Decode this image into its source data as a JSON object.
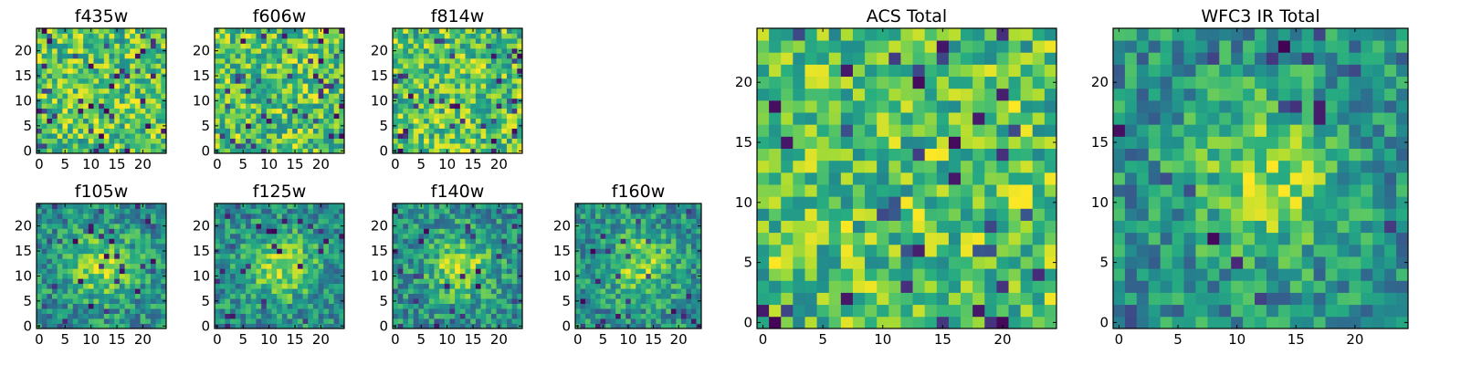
{
  "chart_data": [
    {
      "type": "heatmap",
      "id": "f435w",
      "title": "f435w",
      "colormap": "viridis",
      "grid_size": 25,
      "xlim": [
        0,
        24
      ],
      "ylim": [
        0,
        24
      ],
      "xticks": [
        "0",
        "5",
        "10",
        "15",
        "20"
      ],
      "yticks": [
        "0",
        "5",
        "10",
        "15",
        "20"
      ],
      "structure": "noise",
      "seed": 11
    },
    {
      "type": "heatmap",
      "id": "f606w",
      "title": "f606w",
      "colormap": "viridis",
      "grid_size": 25,
      "xlim": [
        0,
        24
      ],
      "ylim": [
        0,
        24
      ],
      "xticks": [
        "0",
        "5",
        "10",
        "15",
        "20"
      ],
      "yticks": [
        "0",
        "5",
        "10",
        "15",
        "20"
      ],
      "structure": "noise",
      "seed": 23
    },
    {
      "type": "heatmap",
      "id": "f814w",
      "title": "f814w",
      "colormap": "viridis",
      "grid_size": 25,
      "xlim": [
        0,
        24
      ],
      "ylim": [
        0,
        24
      ],
      "xticks": [
        "0",
        "5",
        "10",
        "15",
        "20"
      ],
      "yticks": [
        "0",
        "5",
        "10",
        "15",
        "20"
      ],
      "structure": "noise",
      "seed": 37
    },
    {
      "type": "heatmap",
      "id": "f105w",
      "title": "f105w",
      "colormap": "viridis",
      "grid_size": 25,
      "xlim": [
        0,
        24
      ],
      "ylim": [
        0,
        24
      ],
      "xticks": [
        "0",
        "5",
        "10",
        "15",
        "20"
      ],
      "yticks": [
        "0",
        "5",
        "10",
        "15",
        "20"
      ],
      "structure": "source",
      "seed": 41
    },
    {
      "type": "heatmap",
      "id": "f125w",
      "title": "f125w",
      "colormap": "viridis",
      "grid_size": 25,
      "xlim": [
        0,
        24
      ],
      "ylim": [
        0,
        24
      ],
      "xticks": [
        "0",
        "5",
        "10",
        "15",
        "20"
      ],
      "yticks": [
        "0",
        "5",
        "10",
        "15",
        "20"
      ],
      "structure": "source",
      "seed": 53
    },
    {
      "type": "heatmap",
      "id": "f140w",
      "title": "f140w",
      "colormap": "viridis",
      "grid_size": 25,
      "xlim": [
        0,
        24
      ],
      "ylim": [
        0,
        24
      ],
      "xticks": [
        "0",
        "5",
        "10",
        "15",
        "20"
      ],
      "yticks": [
        "0",
        "5",
        "10",
        "15",
        "20"
      ],
      "structure": "source",
      "seed": 67
    },
    {
      "type": "heatmap",
      "id": "f160w",
      "title": "f160w",
      "colormap": "viridis",
      "grid_size": 25,
      "xlim": [
        0,
        24
      ],
      "ylim": [
        0,
        24
      ],
      "xticks": [
        "0",
        "5",
        "10",
        "15",
        "20"
      ],
      "yticks": [
        "0",
        "5",
        "10",
        "15",
        "20"
      ],
      "structure": "source",
      "seed": 79
    },
    {
      "type": "heatmap",
      "id": "acs-total",
      "title": "ACS Total",
      "colormap": "viridis",
      "grid_size": 25,
      "xlim": [
        0,
        24
      ],
      "ylim": [
        0,
        24
      ],
      "xticks": [
        "0",
        "5",
        "10",
        "15",
        "20"
      ],
      "yticks": [
        "0",
        "5",
        "10",
        "15",
        "20"
      ],
      "structure": "noise",
      "seed": 91
    },
    {
      "type": "heatmap",
      "id": "wfc3-ir-total",
      "title": "WFC3 IR Total",
      "colormap": "viridis",
      "grid_size": 25,
      "xlim": [
        0,
        24
      ],
      "ylim": [
        0,
        24
      ],
      "xticks": [
        "0",
        "5",
        "10",
        "15",
        "20"
      ],
      "yticks": [
        "0",
        "5",
        "10",
        "15",
        "20"
      ],
      "structure": "source",
      "seed": 103
    }
  ]
}
